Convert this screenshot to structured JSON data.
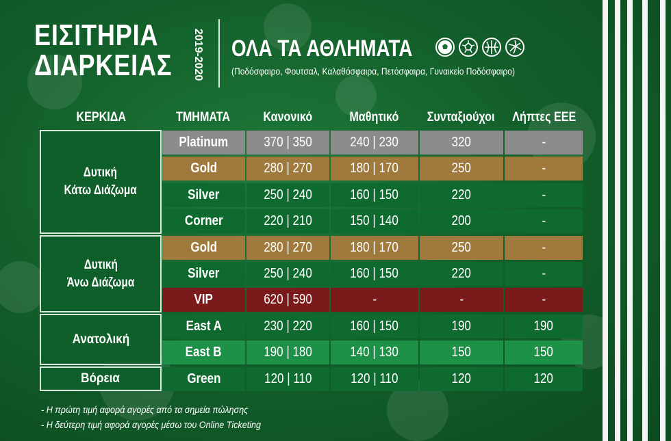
{
  "heading": {
    "title_line1": "ΕΙΣΙΤΗΡΙΑ",
    "title_line2": "ΔΙΑΡΚΕΙΑΣ",
    "season": "2019-2020",
    "sports_title": "ΟΛΑ ΤΑ ΑΘΛΗΜΑΤΑ",
    "sports_subtitle": "(Ποδόσφαιρο, Φουτσαλ, Καλαθόσφαιρα, Πετόσφαιρα, Γυναικείο Ποδόσφαιρο)",
    "ball_icons": [
      "soccer-ball-icon",
      "futsal-ball-icon",
      "basketball-icon",
      "volleyball-icon"
    ]
  },
  "colors": {
    "platinum": "#8c8c8c",
    "gold": "#a07a3c",
    "silver_dark": "#0f6a30",
    "vip": "#7a1a1a",
    "east_b": "#1d9147",
    "stand_bg": "#0e5f2a"
  },
  "table": {
    "headers": [
      "ΚΕΡΚΙΔΑ",
      "ΤΜΗΜΑΤΑ",
      "Κανονικό",
      "Μαθητικό",
      "Συνταξιούχοι",
      "Λήπτες ΕΕΕ"
    ],
    "stands": [
      {
        "line1": "Δυτική",
        "line2": "Κάτω Διάζωμα"
      },
      {
        "line1": "Δυτική",
        "line2": "Άνω Διάζωμα"
      },
      {
        "line1": "Ανατολική",
        "line2": ""
      },
      {
        "line1": "Βόρεια",
        "line2": ""
      }
    ],
    "rows": [
      {
        "section": "Platinum",
        "regular": "370 | 350",
        "student": "240 | 230",
        "pensioner": "320",
        "eee": "-"
      },
      {
        "section": "Gold",
        "regular": "280 | 270",
        "student": "180 | 170",
        "pensioner": "250",
        "eee": "-"
      },
      {
        "section": "Silver",
        "regular": "250 | 240",
        "student": "160 | 150",
        "pensioner": "220",
        "eee": "-"
      },
      {
        "section": "Corner",
        "regular": "220 | 210",
        "student": "150 | 140",
        "pensioner": "200",
        "eee": "-"
      },
      {
        "section": "Gold",
        "regular": "280 | 270",
        "student": "180 | 170",
        "pensioner": "250",
        "eee": "-"
      },
      {
        "section": "Silver",
        "regular": "250 | 240",
        "student": "160 | 150",
        "pensioner": "220",
        "eee": "-"
      },
      {
        "section": "VIP",
        "regular": "620 | 590",
        "student": "-",
        "pensioner": "-",
        "eee": "-"
      },
      {
        "section": "East A",
        "regular": "230 | 220",
        "student": "160 | 150",
        "pensioner": "190",
        "eee": "190"
      },
      {
        "section": "East B",
        "regular": "190 | 180",
        "student": "140 | 130",
        "pensioner": "150",
        "eee": "150"
      },
      {
        "section": "Green",
        "regular": "120 | 110",
        "student": "120 | 110",
        "pensioner": "120",
        "eee": "120"
      }
    ]
  },
  "notes": [
    "- Η πρώτη τιμή αφορά αγορές από τα σημεία πώλησης",
    "- Η δεύτερη τιμή αφορά αγορές μέσω του Online Ticketing"
  ]
}
